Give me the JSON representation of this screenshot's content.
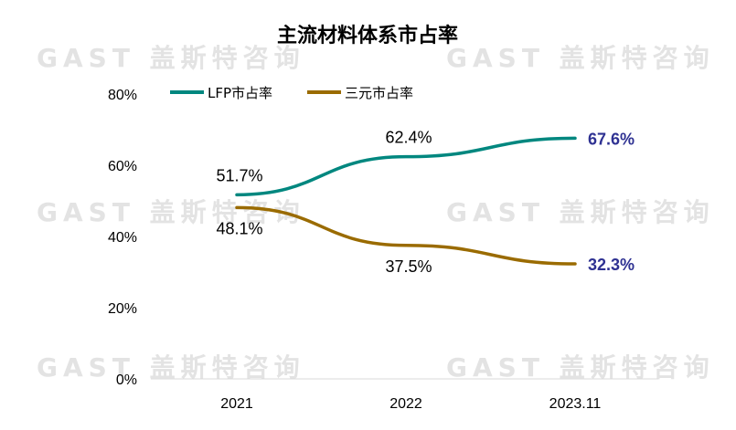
{
  "watermark": "GAST 盖斯特咨询",
  "chart_data": {
    "type": "line",
    "title": "主流材料体系市占率",
    "categories": [
      "2021",
      "2022",
      "2023.11"
    ],
    "y_ticks": [
      "0%",
      "20%",
      "40%",
      "60%",
      "80%"
    ],
    "ylim": [
      0,
      80
    ],
    "grid": false,
    "legend_position": "top-left",
    "series": [
      {
        "name": "LFP市占率",
        "color": "#00877f",
        "values": [
          51.7,
          62.4,
          67.6
        ],
        "labels": [
          "51.7%",
          "62.4%",
          "67.6%"
        ]
      },
      {
        "name": "三元市占率",
        "color": "#9a6b00",
        "values": [
          48.1,
          37.5,
          32.3
        ],
        "labels": [
          "48.1%",
          "37.5%",
          "32.3%"
        ]
      }
    ],
    "end_label_color": "#2e3192"
  }
}
